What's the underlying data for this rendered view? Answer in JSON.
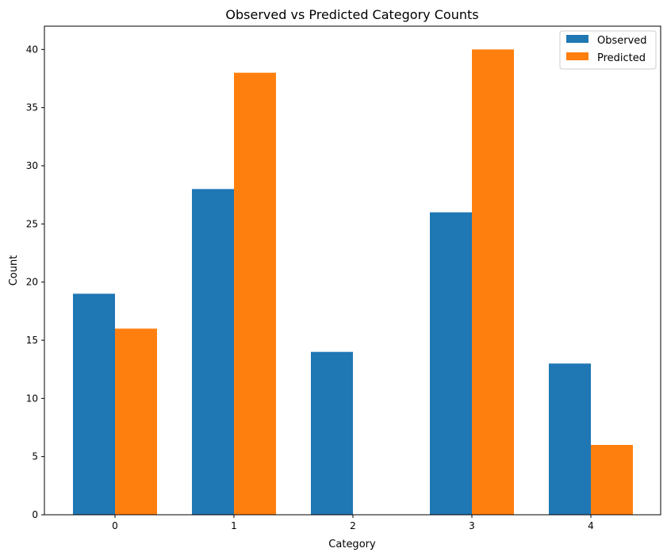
{
  "chart_data": {
    "type": "bar",
    "title": "Observed vs Predicted Category Counts",
    "xlabel": "Category",
    "ylabel": "Count",
    "categories": [
      "0",
      "1",
      "2",
      "3",
      "4"
    ],
    "series": [
      {
        "name": "Observed",
        "color": "#1f77b4",
        "values": [
          19,
          28,
          14,
          26,
          13
        ]
      },
      {
        "name": "Predicted",
        "color": "#ff7f0e",
        "values": [
          16,
          38,
          0,
          40,
          6
        ]
      }
    ],
    "ylim": [
      0,
      42
    ],
    "yticks": [
      0,
      5,
      10,
      15,
      20,
      25,
      30,
      35,
      40
    ],
    "grid": false,
    "legend_position": "top-right"
  }
}
